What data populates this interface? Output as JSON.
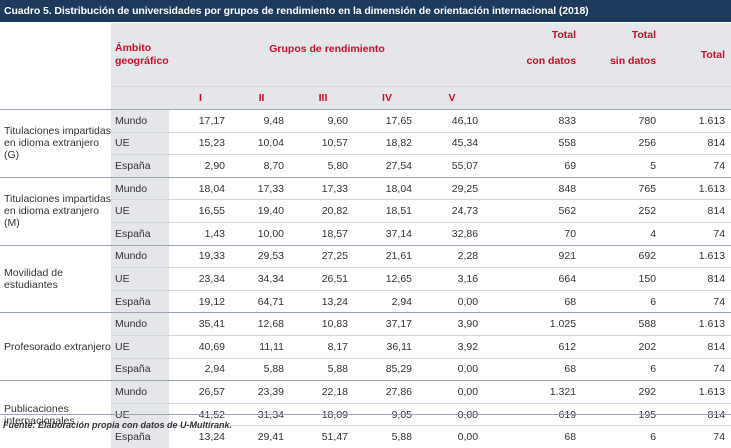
{
  "title": "Cuadro 5. Distribución de universidades por grupos de rendimiento en la dimensión de orientación internacional (2018)",
  "header": {
    "ambito_line1": "Ámbito",
    "ambito_line2": "geográfico",
    "grupos": "Grupos de rendimiento",
    "groups": [
      "I",
      "II",
      "III",
      "IV",
      "V"
    ],
    "total_con_1": "Total",
    "total_con_2": "con datos",
    "total_sin_1": "Total",
    "total_sin_2": "sin datos",
    "total": "Total"
  },
  "rows": [
    {
      "category": "Titulaciones impartidas en idioma extranjero (G)",
      "region": "Mundo",
      "values": [
        "17,17",
        "9,48",
        "9,60",
        "17,65",
        "46,10"
      ],
      "con": "833",
      "sin": "780",
      "total": "1.613"
    },
    {
      "category": "",
      "region": "UE",
      "values": [
        "15,23",
        "10,04",
        "10,57",
        "18,82",
        "45,34"
      ],
      "con": "558",
      "sin": "256",
      "total": "814"
    },
    {
      "category": "",
      "region": "España",
      "values": [
        "2,90",
        "8,70",
        "5,80",
        "27,54",
        "55,07"
      ],
      "con": "69",
      "sin": "5",
      "total": "74"
    },
    {
      "category": "Titulaciones impartidas en idioma extranjero (M)",
      "region": "Mundo",
      "values": [
        "18,04",
        "17,33",
        "17,33",
        "18,04",
        "29,25"
      ],
      "con": "848",
      "sin": "765",
      "total": "1.613"
    },
    {
      "category": "",
      "region": "UE",
      "values": [
        "16,55",
        "19,40",
        "20,82",
        "18,51",
        "24,73"
      ],
      "con": "562",
      "sin": "252",
      "total": "814"
    },
    {
      "category": "",
      "region": "España",
      "values": [
        "1,43",
        "10,00",
        "18,57",
        "37,14",
        "32,86"
      ],
      "con": "70",
      "sin": "4",
      "total": "74"
    },
    {
      "category": "Movilidad de estudiantes",
      "region": "Mundo",
      "values": [
        "19,33",
        "29,53",
        "27,25",
        "21,61",
        "2,28"
      ],
      "con": "921",
      "sin": "692",
      "total": "1.613"
    },
    {
      "category": "",
      "region": "UE",
      "values": [
        "23,34",
        "34,34",
        "26,51",
        "12,65",
        "3,16"
      ],
      "con": "664",
      "sin": "150",
      "total": "814"
    },
    {
      "category": "",
      "region": "España",
      "values": [
        "19,12",
        "64,71",
        "13,24",
        "2,94",
        "0,00"
      ],
      "con": "68",
      "sin": "6",
      "total": "74"
    },
    {
      "category": "Profesorado extranjero",
      "region": "Mundo",
      "values": [
        "35,41",
        "12,68",
        "10,83",
        "37,17",
        "3,90"
      ],
      "con": "1.025",
      "sin": "588",
      "total": "1.613"
    },
    {
      "category": "",
      "region": "UE",
      "values": [
        "40,69",
        "11,11",
        "8,17",
        "36,11",
        "3,92"
      ],
      "con": "612",
      "sin": "202",
      "total": "814"
    },
    {
      "category": "",
      "region": "España",
      "values": [
        "2,94",
        "5,88",
        "5,88",
        "85,29",
        "0,00"
      ],
      "con": "68",
      "sin": "6",
      "total": "74"
    },
    {
      "category": "Publicaciones internacionales",
      "region": "Mundo",
      "values": [
        "26,57",
        "23,39",
        "22,18",
        "27,86",
        "0,00"
      ],
      "con": "1.321",
      "sin": "292",
      "total": "1.613"
    },
    {
      "category": "",
      "region": "UE",
      "values": [
        "41,52",
        "31,34",
        "18,09",
        "9,05",
        "0,00"
      ],
      "con": "619",
      "sin": "195",
      "total": "814"
    },
    {
      "category": "",
      "region": "España",
      "values": [
        "13,24",
        "29,41",
        "51,47",
        "5,88",
        "0,00"
      ],
      "con": "68",
      "sin": "6",
      "total": "74"
    }
  ],
  "footer": "Fuente: Elaboración propia con datos de U-Multirank.",
  "colors": {
    "title_bg": "#1d3a5c",
    "accent": "#c8102e",
    "shade": "#e4e6ea"
  }
}
